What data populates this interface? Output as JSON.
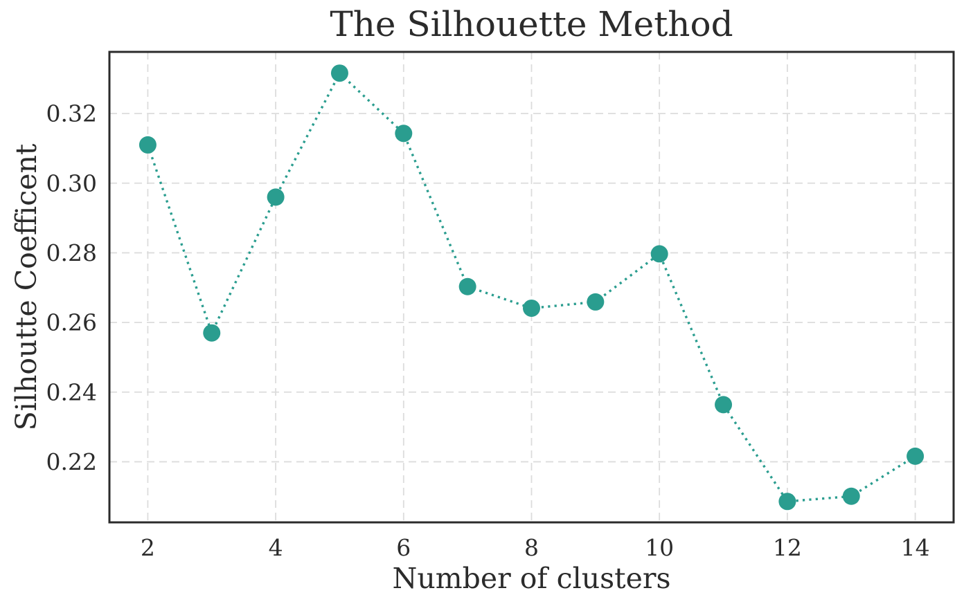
{
  "chart_data": {
    "type": "line",
    "title": "The Silhouette Method",
    "xlabel": "Number of clusters",
    "ylabel": "Silhoutte Coefficent",
    "x": [
      2,
      3,
      4,
      5,
      6,
      7,
      8,
      9,
      10,
      11,
      12,
      13,
      14
    ],
    "values": [
      0.311,
      0.257,
      0.296,
      0.3316,
      0.3143,
      0.2703,
      0.2641,
      0.2659,
      0.2797,
      0.2364,
      0.2086,
      0.2101,
      0.2216
    ],
    "series_style": {
      "line_style": "dotted",
      "marker": "circle",
      "marker_radius": 12.5
    },
    "xlim": [
      1.4,
      14.6
    ],
    "ylim": [
      0.2026,
      0.3377
    ],
    "xticks": {
      "values": [
        2,
        4,
        6,
        8,
        10,
        12,
        14
      ],
      "labels": [
        "2",
        "4",
        "6",
        "8",
        "10",
        "12",
        "14"
      ]
    },
    "yticks": {
      "values": [
        0.22,
        0.24,
        0.26,
        0.28,
        0.3,
        0.32
      ],
      "labels": [
        "0.22",
        "0.24",
        "0.26",
        "0.28",
        "0.30",
        "0.32"
      ]
    },
    "grid": true,
    "legend": "none",
    "colors": {
      "line": "#2a9d8f",
      "marker": "#2a9d8f",
      "grid": "#dcdcdc",
      "spine": "#2b2b2b",
      "text": "#2b2b2b",
      "background": "#ffffff"
    }
  }
}
